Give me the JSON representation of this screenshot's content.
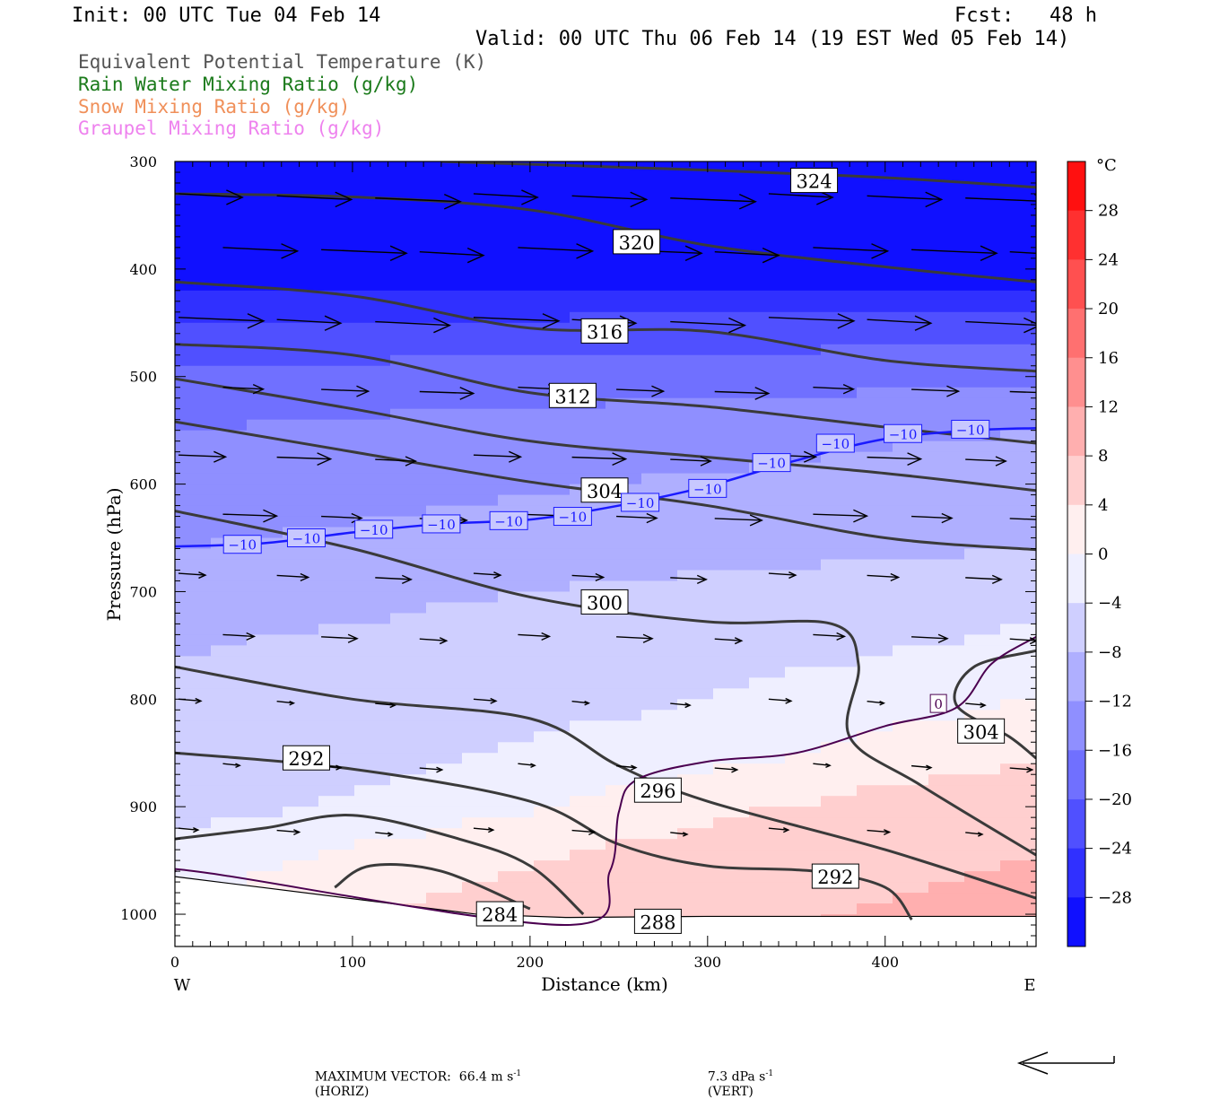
{
  "header": {
    "init": "Init: 00 UTC Tue 04 Feb 14",
    "fcst": "Fcst:   48 h",
    "valid": "Valid: 00 UTC Thu 06 Feb 14 (19 EST Wed 05 Feb 14)"
  },
  "legend": [
    {
      "label": "Equivalent Potential Temperature (K)",
      "color": "#555555"
    },
    {
      "label": "Rain Water Mixing Ratio (g/kg)",
      "color": "#1a7a1a"
    },
    {
      "label": "Snow Mixing Ratio (g/kg)",
      "color": "#f0905a"
    },
    {
      "label": "Graupel Mixing Ratio (g/kg)",
      "color": "#ee82ee"
    }
  ],
  "footer": {
    "max_vector": "MAXIMUM VECTOR:  66.4 m s",
    "horiz": "(HORIZ)",
    "vert": "7.3 dPa s",
    "vert_unit": "(VERT)",
    "sup": "-1"
  },
  "chart_data": {
    "type": "contour",
    "xlabel": "Distance (km)",
    "ylabel": "Pressure (hPa)",
    "xlim": [
      0,
      485
    ],
    "ylim": [
      1030,
      300
    ],
    "x_ticks": [
      0,
      100,
      200,
      300,
      400
    ],
    "y_ticks": [
      300,
      400,
      500,
      600,
      700,
      800,
      900,
      1000
    ],
    "x_ends": {
      "left": "W",
      "right": "E"
    },
    "colorbar": {
      "unit": "°C",
      "min": -32,
      "max": 32,
      "ticks": [
        28,
        24,
        20,
        16,
        12,
        8,
        4,
        0,
        -4,
        -8,
        -12,
        -16,
        -20,
        -24,
        -28
      ]
    },
    "temperature_field": {
      "description_free": true,
      "profile_left": [
        [
          300,
          -32
        ],
        [
          400,
          -30
        ],
        [
          450,
          -22
        ],
        [
          500,
          -17
        ],
        [
          550,
          -14
        ],
        [
          600,
          -12
        ],
        [
          660,
          -10
        ],
        [
          700,
          -8
        ],
        [
          760,
          -6
        ],
        [
          800,
          -5
        ],
        [
          860,
          -4
        ],
        [
          900,
          -3
        ],
        [
          950,
          -1
        ],
        [
          1000,
          0
        ]
      ],
      "profile_right": [
        [
          300,
          -32
        ],
        [
          400,
          -30
        ],
        [
          450,
          -20
        ],
        [
          500,
          -15
        ],
        [
          550,
          -10
        ],
        [
          600,
          -8
        ],
        [
          660,
          -6
        ],
        [
          700,
          -3
        ],
        [
          760,
          -1
        ],
        [
          800,
          0
        ],
        [
          860,
          2
        ],
        [
          900,
          4
        ],
        [
          950,
          6
        ],
        [
          1000,
          8
        ]
      ]
    },
    "theta_e_contours": [
      {
        "value": 324,
        "points": [
          [
            150,
            300
          ],
          [
            300,
            308
          ],
          [
            400,
            315
          ],
          [
            485,
            324
          ]
        ],
        "labels": [
          [
            360,
            318
          ]
        ]
      },
      {
        "value": 320,
        "points": [
          [
            0,
            330
          ],
          [
            100,
            333
          ],
          [
            200,
            345
          ],
          [
            300,
            378
          ],
          [
            400,
            398
          ],
          [
            485,
            412
          ]
        ],
        "labels": [
          [
            260,
            375
          ]
        ]
      },
      {
        "value": 316,
        "points": [
          [
            0,
            412
          ],
          [
            100,
            425
          ],
          [
            200,
            455
          ],
          [
            300,
            458
          ],
          [
            400,
            485
          ],
          [
            485,
            495
          ]
        ],
        "labels": [
          [
            242,
            458
          ]
        ]
      },
      {
        "value": 312,
        "points": [
          [
            0,
            470
          ],
          [
            100,
            480
          ],
          [
            200,
            515
          ],
          [
            300,
            528
          ],
          [
            400,
            547
          ],
          [
            485,
            562
          ]
        ],
        "labels": [
          [
            224,
            518
          ]
        ]
      },
      {
        "value": null,
        "points": [
          [
            0,
            502
          ],
          [
            100,
            530
          ],
          [
            200,
            560
          ],
          [
            300,
            575
          ],
          [
            400,
            590
          ],
          [
            485,
            606
          ]
        ],
        "labels": []
      },
      {
        "value": 304,
        "points": [
          [
            0,
            542
          ],
          [
            100,
            570
          ],
          [
            200,
            598
          ],
          [
            300,
            620
          ],
          [
            400,
            650
          ],
          [
            485,
            661
          ]
        ],
        "labels": [
          [
            242,
            606
          ]
        ]
      },
      {
        "value": 300,
        "points": [
          [
            0,
            625
          ],
          [
            100,
            660
          ],
          [
            200,
            705
          ],
          [
            300,
            728
          ],
          [
            370,
            730
          ],
          [
            385,
            768
          ],
          [
            380,
            835
          ],
          [
            420,
            880
          ],
          [
            485,
            945
          ]
        ],
        "labels": [
          [
            242,
            710
          ]
        ]
      },
      {
        "value": 296,
        "points": [
          [
            0,
            770
          ],
          [
            100,
            800
          ],
          [
            200,
            818
          ],
          [
            250,
            862
          ],
          [
            300,
            895
          ],
          [
            400,
            940
          ],
          [
            485,
            985
          ]
        ],
        "labels": [
          [
            272,
            885
          ]
        ]
      },
      {
        "value": 292,
        "points": [
          [
            0,
            850
          ],
          [
            100,
            865
          ],
          [
            200,
            895
          ],
          [
            250,
            935
          ],
          [
            300,
            955
          ],
          [
            360,
            960
          ],
          [
            400,
            975
          ],
          [
            415,
            1005
          ]
        ],
        "labels": [
          [
            74,
            855
          ],
          [
            372,
            965
          ]
        ]
      },
      {
        "value": 288,
        "points": [
          [
            0,
            930
          ],
          [
            50,
            920
          ],
          [
            100,
            908
          ],
          [
            160,
            930
          ],
          [
            200,
            955
          ],
          [
            230,
            1000
          ]
        ],
        "labels": [
          [
            272,
            1007
          ]
        ]
      },
      {
        "value": 284,
        "points": [
          [
            90,
            975
          ],
          [
            110,
            955
          ],
          [
            150,
            960
          ],
          [
            200,
            995
          ]
        ],
        "labels": [
          [
            183,
            1000
          ]
        ]
      },
      {
        "value": 304,
        "points": [
          [
            485,
            755
          ],
          [
            450,
            770
          ],
          [
            440,
            805
          ],
          [
            470,
            835
          ],
          [
            485,
            855
          ]
        ],
        "labels": [
          [
            454,
            830
          ]
        ]
      }
    ],
    "isotherms": [
      {
        "value": -10,
        "color": "#1a1aff",
        "points": [
          [
            0,
            658
          ],
          [
            50,
            655
          ],
          [
            100,
            645
          ],
          [
            150,
            637
          ],
          [
            200,
            633
          ],
          [
            250,
            620
          ],
          [
            300,
            602
          ],
          [
            350,
            578
          ],
          [
            400,
            558
          ],
          [
            450,
            550
          ],
          [
            485,
            548
          ]
        ],
        "labels": [
          [
            38,
            656
          ],
          [
            74,
            650
          ],
          [
            112,
            642
          ],
          [
            150,
            637
          ],
          [
            188,
            634
          ],
          [
            224,
            630
          ],
          [
            262,
            617
          ],
          [
            300,
            604
          ],
          [
            336,
            580
          ],
          [
            372,
            562
          ],
          [
            410,
            553
          ],
          [
            448,
            549
          ]
        ]
      },
      {
        "value": 0,
        "color": "#4b0050",
        "points": [
          [
            0,
            960
          ],
          [
            20,
            962
          ],
          [
            220,
            1010
          ],
          [
            245,
            960
          ],
          [
            250,
            905
          ],
          [
            260,
            875
          ],
          [
            300,
            858
          ],
          [
            350,
            850
          ],
          [
            400,
            825
          ],
          [
            440,
            808
          ],
          [
            460,
            767
          ],
          [
            485,
            742
          ]
        ],
        "labels": [
          [
            430,
            804
          ]
        ]
      }
    ],
    "vectors": {
      "rows": [
        330,
        380,
        445,
        510,
        573,
        628,
        683,
        740,
        800,
        860,
        920
      ],
      "note": "wind vectors along section"
    }
  }
}
